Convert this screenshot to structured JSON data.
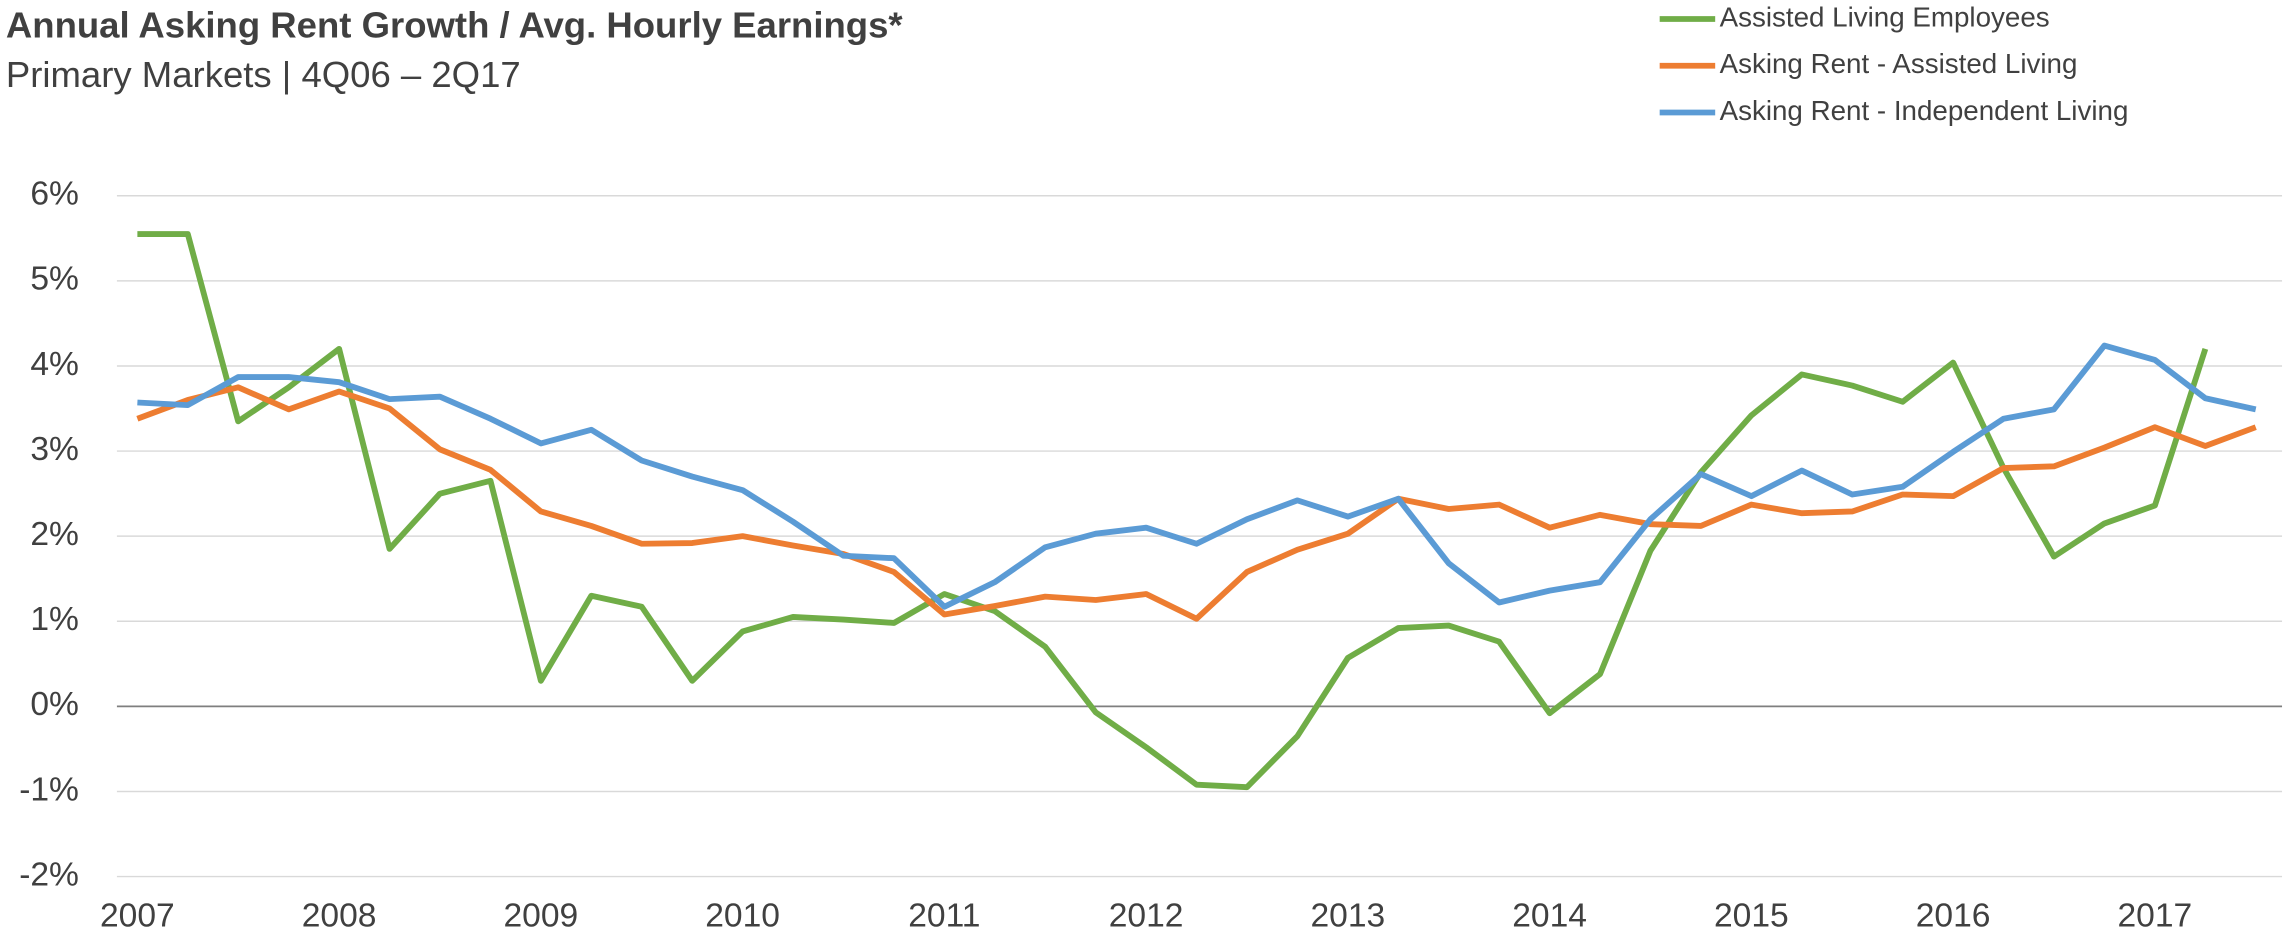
{
  "chart_data": {
    "type": "line",
    "title": "Annual Asking Rent Growth / Avg. Hourly Earnings*",
    "subtitle": "Primary Markets | 4Q06 – 2Q17",
    "categories": [
      "2007",
      null,
      null,
      null,
      "2008",
      null,
      null,
      null,
      "2009",
      null,
      null,
      null,
      "2010",
      null,
      null,
      null,
      "2011",
      null,
      null,
      null,
      "2012",
      null,
      null,
      null,
      "2013",
      null,
      null,
      null,
      "2014",
      null,
      null,
      null,
      "2015",
      null,
      null,
      null,
      "2016",
      null,
      null,
      null,
      "2017",
      null,
      null
    ],
    "series": [
      {
        "name": "Assisted Living Employees",
        "color": "#70ad47",
        "values": [
          5.55,
          5.55,
          3.35,
          3.75,
          4.2,
          1.85,
          2.5,
          2.65,
          0.3,
          1.3,
          1.17,
          0.3,
          0.88,
          1.05,
          1.02,
          0.98,
          1.32,
          1.12,
          0.7,
          -0.07,
          -0.48,
          -0.92,
          -0.95,
          -0.35,
          0.57,
          0.92,
          0.95,
          0.76,
          -0.08,
          0.38,
          1.83,
          2.75,
          3.42,
          3.9,
          3.77,
          3.58,
          4.04,
          2.8,
          1.76,
          2.15,
          2.36,
          4.2,
          null
        ]
      },
      {
        "name": "Asking Rent - Assisted Living",
        "color": "#ed7d31",
        "values": [
          3.38,
          3.6,
          3.75,
          3.49,
          3.7,
          3.5,
          3.02,
          2.78,
          2.29,
          2.12,
          1.91,
          1.92,
          2.0,
          1.89,
          1.79,
          1.58,
          1.08,
          1.18,
          1.29,
          1.25,
          1.32,
          1.03,
          1.58,
          1.84,
          2.03,
          2.44,
          2.32,
          2.37,
          2.1,
          2.25,
          2.14,
          2.12,
          2.37,
          2.27,
          2.29,
          2.49,
          2.47,
          2.8,
          2.82,
          3.04,
          3.28,
          3.06,
          3.28
        ]
      },
      {
        "name": "Asking Rent - Independent Living",
        "color": "#5b9bd5",
        "values": [
          3.57,
          3.54,
          3.87,
          3.87,
          3.81,
          3.61,
          3.64,
          3.38,
          3.09,
          3.25,
          2.89,
          2.7,
          2.54,
          2.17,
          1.77,
          1.74,
          1.17,
          1.46,
          1.87,
          2.03,
          2.1,
          1.91,
          2.2,
          2.42,
          2.23,
          2.44,
          1.68,
          1.22,
          1.36,
          1.46,
          2.2,
          2.73,
          2.47,
          2.77,
          2.49,
          2.58,
          2.99,
          3.38,
          3.49,
          4.24,
          4.07,
          3.62,
          3.49
        ]
      }
    ],
    "ylim": [
      -2,
      6
    ],
    "yticks": [
      {
        "value": -2,
        "label": "-2%"
      },
      {
        "value": -1,
        "label": "-1%"
      },
      {
        "value": 0,
        "label": "0%"
      },
      {
        "value": 1,
        "label": "1%"
      },
      {
        "value": 2,
        "label": "2%"
      },
      {
        "value": 3,
        "label": "3%"
      },
      {
        "value": 4,
        "label": "4%"
      },
      {
        "value": 5,
        "label": "5%"
      },
      {
        "value": 6,
        "label": "6%"
      }
    ],
    "grid": true,
    "legend": "top-right"
  }
}
